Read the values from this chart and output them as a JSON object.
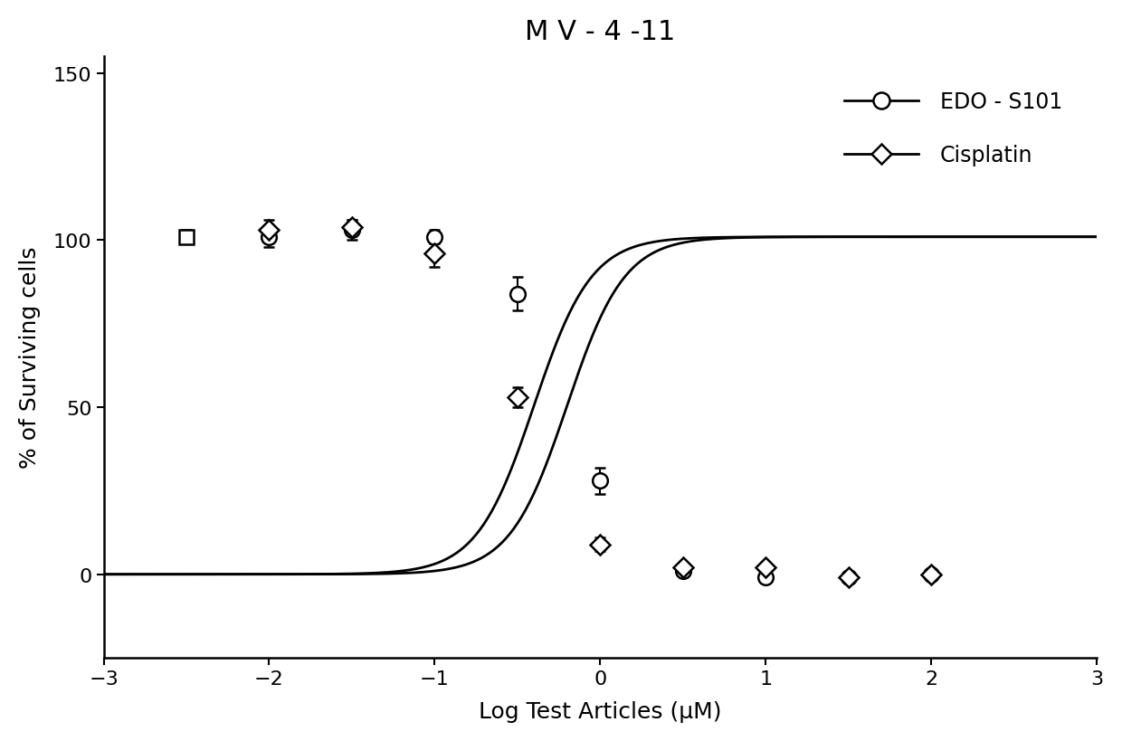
{
  "title": "M V - 4 -11",
  "xlabel": "Log Test Articles (μM)",
  "ylabel": "% of Surviving cells",
  "xlim": [
    -3,
    3
  ],
  "ylim": [
    -25,
    155
  ],
  "yticks": [
    0,
    50,
    100,
    150
  ],
  "xticks": [
    -3,
    -2,
    -1,
    0,
    1,
    2,
    3
  ],
  "edo_x": [
    -2.5,
    -2.0,
    -1.5,
    -1.0,
    -0.5,
    0.0,
    0.5,
    1.0,
    1.5,
    2.0
  ],
  "edo_y": [
    101,
    101,
    103,
    101,
    84,
    28,
    1,
    -1,
    -1,
    0
  ],
  "edo_yerr": [
    2,
    3,
    3,
    2,
    5,
    4,
    1,
    1,
    0,
    0
  ],
  "cisplatin_x": [
    -2.0,
    -1.5,
    -1.0,
    -0.5,
    0.0,
    0.5,
    1.0,
    1.5,
    2.0
  ],
  "cisplatin_y": [
    103,
    104,
    96,
    53,
    9,
    2,
    2,
    -1,
    0
  ],
  "cisplatin_yerr": [
    3,
    2,
    4,
    3,
    2,
    1,
    1,
    0,
    0
  ],
  "line_color": "#000000",
  "background_color": "#ffffff",
  "legend_edo": "EDO - S101",
  "legend_cisplatin": "Cisplatin",
  "title_fontsize": 22,
  "label_fontsize": 18,
  "tick_fontsize": 16,
  "legend_fontsize": 17
}
